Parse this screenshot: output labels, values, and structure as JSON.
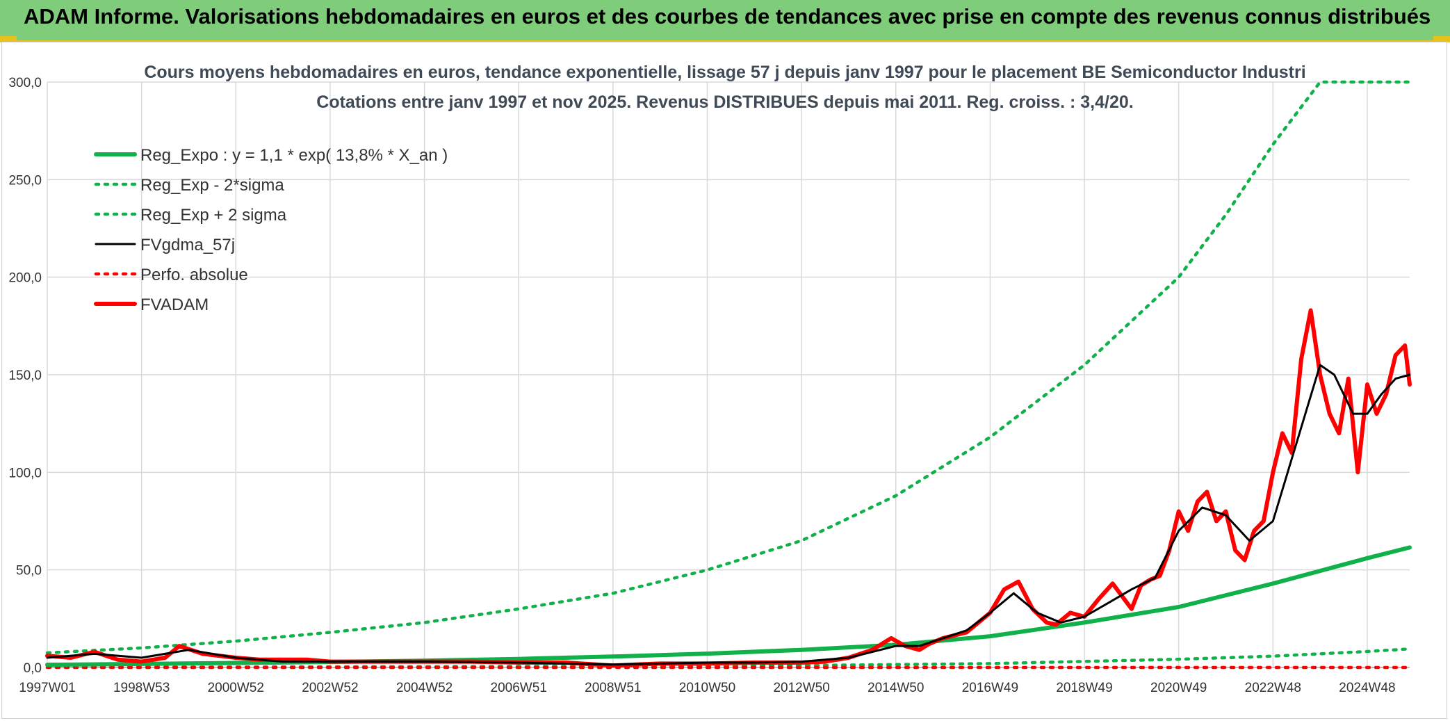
{
  "banner": {
    "title": "ADAM Informe. Valorisations hebdomadaires en euros et des courbes de tendances avec prise en compte des revenus connus distribués"
  },
  "colors": {
    "banner": "#7fcc7a",
    "accent_yellow": "#e8c21a",
    "trend": "#10b04a",
    "smooth": "#000000",
    "price": "#ff0000",
    "grid": "#d9d9d9"
  },
  "chart_data": {
    "type": "line",
    "title_lines": [
      "Cours moyens hebdomadaires en euros, tendance exponentielle, lissage 57 j depuis janv 1997 pour le placement BE Semiconductor Industri",
      "Cotations entre janv 1997 et nov 2025. Revenus DISTRIBUES depuis mai 2011. Reg. croiss. : 3,4/20."
    ],
    "xlabel": "",
    "ylabel": "",
    "x_range": [
      1997.0,
      2025.9
    ],
    "ylim": [
      0,
      300
    ],
    "y_ticks": [
      "0,0",
      "50,0",
      "100,0",
      "150,0",
      "200,0",
      "250,0",
      "300,0"
    ],
    "x_ticks": [
      {
        "label": "1997W01",
        "x": 1997.0
      },
      {
        "label": "1998W53",
        "x": 1999.0
      },
      {
        "label": "2000W52",
        "x": 2001.0
      },
      {
        "label": "2002W52",
        "x": 2003.0
      },
      {
        "label": "2004W52",
        "x": 2005.0
      },
      {
        "label": "2006W51",
        "x": 2007.0
      },
      {
        "label": "2008W51",
        "x": 2009.0
      },
      {
        "label": "2010W50",
        "x": 2011.0
      },
      {
        "label": "2012W50",
        "x": 2013.0
      },
      {
        "label": "2014W50",
        "x": 2015.0
      },
      {
        "label": "2016W49",
        "x": 2017.0
      },
      {
        "label": "2018W49",
        "x": 2019.0
      },
      {
        "label": "2020W49",
        "x": 2021.0
      },
      {
        "label": "2022W48",
        "x": 2023.0
      },
      {
        "label": "2024W48",
        "x": 2025.0
      }
    ],
    "grid": true,
    "legend_position": "top-left",
    "series": [
      {
        "name": "Reg_Expo : y = 1,1 * exp( 13,8% *  X_an )",
        "style": "solid-thick",
        "color": "#10b04a",
        "x": [
          1997,
          1999,
          2001,
          2003,
          2005,
          2007,
          2009,
          2011,
          2013,
          2015,
          2017,
          2019,
          2021,
          2023,
          2025,
          2025.9
        ],
        "values": [
          1.4,
          1.8,
          2.3,
          2.8,
          3.5,
          4.4,
          5.6,
          7.1,
          9.0,
          11.6,
          16.0,
          23.0,
          31.0,
          43.0,
          56.0,
          61.5
        ]
      },
      {
        "name": "Reg_Exp - 2*sigma",
        "style": "dotted",
        "color": "#10b04a",
        "x": [
          1997,
          2001,
          2005,
          2009,
          2013,
          2017,
          2021,
          2023,
          2025,
          2025.9
        ],
        "values": [
          0.1,
          0.2,
          0.4,
          0.6,
          1.0,
          2.0,
          4.2,
          5.8,
          8.2,
          9.5
        ]
      },
      {
        "name": "Reg_Exp + 2 sigma",
        "style": "dotted",
        "color": "#10b04a",
        "x": [
          1997,
          1999,
          2001,
          2003,
          2005,
          2007,
          2009,
          2011,
          2013,
          2015,
          2017,
          2019,
          2021,
          2022,
          2023,
          2024.0,
          2025.9
        ],
        "values": [
          7.5,
          10.0,
          13.5,
          18.0,
          23.0,
          30.0,
          38.0,
          50.0,
          65.0,
          88.0,
          118.0,
          155.0,
          200.0,
          232.0,
          268.0,
          300.0,
          300.0
        ]
      },
      {
        "name": "FVgdma_57j",
        "style": "solid",
        "color": "#000000",
        "x": [
          1997,
          1998,
          1999,
          2000,
          2001,
          2002,
          2003,
          2004,
          2005,
          2007,
          2009,
          2010,
          2011,
          2012,
          2013,
          2014,
          2015,
          2015.5,
          2016,
          2016.5,
          2017,
          2017.5,
          2018,
          2018.5,
          2019,
          2019.5,
          2020,
          2020.5,
          2021,
          2021.5,
          2022,
          2022.5,
          2023,
          2023.5,
          2024,
          2024.3,
          2024.7,
          2025,
          2025.3,
          2025.6,
          2025.9
        ],
        "values": [
          5,
          7,
          5,
          9,
          5,
          3,
          3,
          3,
          3,
          2.5,
          1.5,
          2,
          2.5,
          2.5,
          3,
          5,
          11,
          11,
          15,
          19,
          28,
          38,
          28,
          23,
          26,
          33,
          40,
          46,
          70,
          82,
          78,
          65,
          75,
          115,
          155,
          150,
          130,
          130,
          140,
          148,
          150
        ]
      },
      {
        "name": "Perfo. absolue",
        "style": "dotted",
        "color": "#ff0000",
        "x": [
          1997,
          2025.9
        ],
        "values": [
          0,
          0
        ]
      },
      {
        "name": "FVADAM",
        "style": "solid-thick",
        "color": "#ff0000",
        "x": [
          1997,
          1997.5,
          1998,
          1998.5,
          1999,
          1999.5,
          1999.8,
          2000.3,
          2001,
          2001.5,
          2002,
          2002.5,
          2003,
          2004,
          2005,
          2006,
          2007,
          2008,
          2009,
          2009.5,
          2010,
          2011,
          2012,
          2013,
          2013.5,
          2014,
          2014.5,
          2014.9,
          2015.2,
          2015.5,
          2015.7,
          2016,
          2016.5,
          2017,
          2017.3,
          2017.6,
          2017.9,
          2018.2,
          2018.4,
          2018.7,
          2019,
          2019.3,
          2019.6,
          2020,
          2020.2,
          2020.4,
          2020.6,
          2020.8,
          2021,
          2021.2,
          2021.4,
          2021.6,
          2021.8,
          2022,
          2022.2,
          2022.4,
          2022.6,
          2022.8,
          2023.0,
          2023.2,
          2023.4,
          2023.6,
          2023.8,
          2024.0,
          2024.2,
          2024.4,
          2024.6,
          2024.8,
          2025.0,
          2025.2,
          2025.4,
          2025.6,
          2025.8,
          2025.9
        ],
        "values": [
          6,
          5,
          8,
          4,
          3,
          5,
          11,
          7,
          5,
          4,
          4,
          4,
          3,
          3,
          3,
          3,
          2.5,
          2.5,
          1,
          1.5,
          2,
          2,
          2.5,
          2.5,
          3,
          5,
          9,
          15,
          11,
          9,
          12,
          15,
          18,
          28,
          40,
          44,
          30,
          23,
          22,
          28,
          26,
          35,
          43,
          30,
          42,
          45,
          47,
          60,
          80,
          70,
          85,
          90,
          75,
          80,
          60,
          55,
          70,
          75,
          100,
          120,
          110,
          158,
          183,
          150,
          130,
          120,
          148,
          100,
          145,
          130,
          140,
          160,
          165,
          145
        ]
      }
    ]
  }
}
